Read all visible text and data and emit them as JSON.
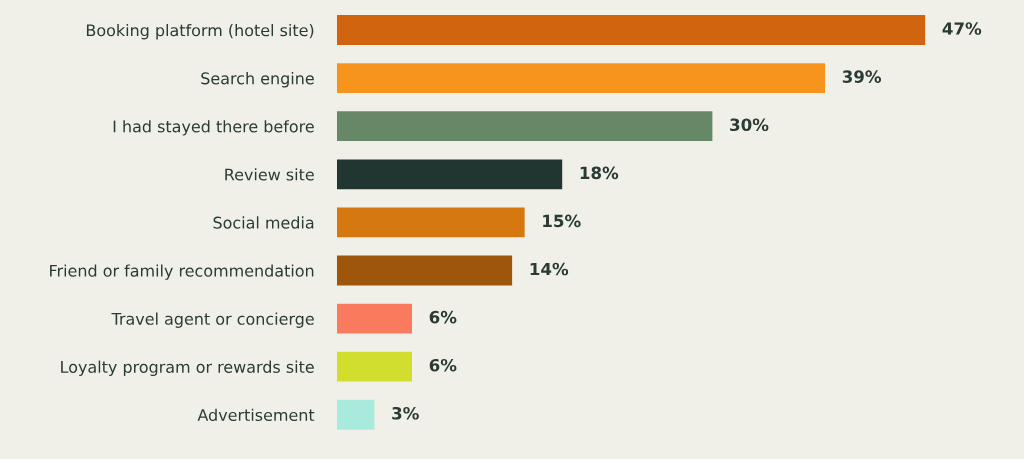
{
  "chart_data": {
    "type": "bar",
    "orientation": "horizontal",
    "data_labels": true,
    "grid": false,
    "legend": false,
    "categories": [
      "Booking platform (hotel site)",
      "Search engine",
      "I had stayed there before",
      "Review site",
      "Social media",
      "Friend or family recommendation",
      "Travel agent or concierge",
      "Loyalty program or rewards site",
      "Advertisement"
    ],
    "values": [
      47,
      39,
      30,
      18,
      15,
      14,
      6,
      6,
      3
    ],
    "value_labels": [
      "47%",
      "39%",
      "30%",
      "18%",
      "15%",
      "14%",
      "6%",
      "6%",
      "3%"
    ],
    "colors": [
      "#d0640f",
      "#f7941d",
      "#668866",
      "#213630",
      "#d4780f",
      "#9e560a",
      "#fa7a5e",
      "#d2de2e",
      "#a8ebdc"
    ]
  }
}
